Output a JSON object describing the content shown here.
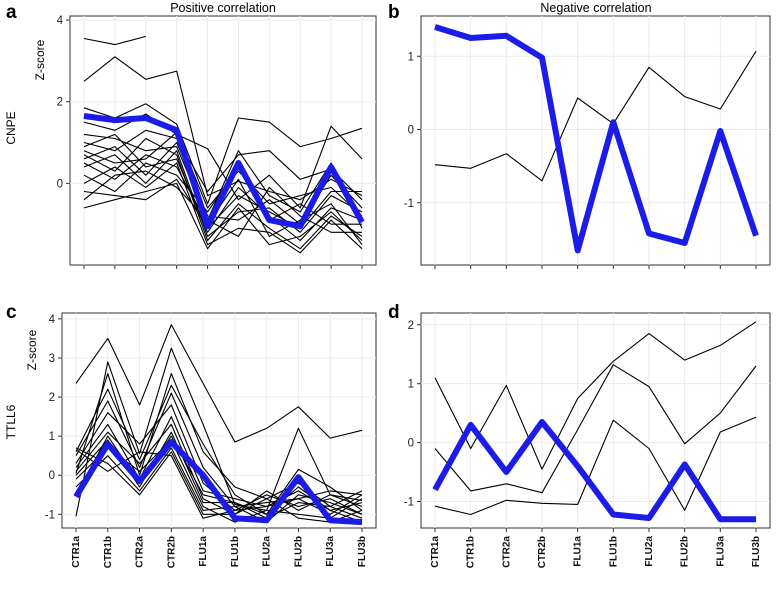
{
  "figure": {
    "colors": {
      "background": "#ffffff",
      "grid": "#ebebeb",
      "frame": "#333333",
      "gene_line": "#000000",
      "highlight": "#1c1ce8"
    },
    "categories": [
      "CTR1a",
      "CTR1b",
      "CTR2a",
      "CTR2b",
      "FLU1a",
      "FLU1b",
      "FLU2a",
      "FLU2b",
      "FLU3a",
      "FLU3b"
    ]
  },
  "chart_data": [
    {
      "type": "line",
      "panel_label": "a",
      "title": "Positive correlation",
      "ylabel": "Z-score",
      "gene_label": "CNPE",
      "xlabel": "",
      "categories": [
        "CTR1a",
        "CTR1b",
        "CTR2a",
        "CTR2b",
        "FLU1a",
        "FLU1b",
        "FLU2a",
        "FLU2b",
        "FLU3a",
        "FLU3b"
      ],
      "ylim": [
        -2.0,
        4.1
      ],
      "yticks": [
        0,
        2,
        4
      ],
      "grid": true,
      "show_x_tick_labels": false,
      "highlight": {
        "name": "CNPE",
        "color": "#1c1ce8",
        "values": [
          1.65,
          1.55,
          1.6,
          1.3,
          -1.05,
          0.5,
          -0.9,
          -1.05,
          0.4,
          -0.95
        ]
      },
      "series": [
        {
          "name": "g1",
          "values": [
            3.55,
            3.4,
            3.6,
            null,
            null,
            null,
            null,
            null,
            null,
            null
          ]
        },
        {
          "name": "g2",
          "values": [
            2.5,
            3.1,
            2.55,
            2.75,
            -0.3,
            0.05,
            -0.2,
            -0.4,
            0.1,
            -0.3
          ]
        },
        {
          "name": "g3",
          "values": [
            1.85,
            1.6,
            1.95,
            1.45,
            -0.5,
            1.6,
            1.5,
            0.9,
            1.1,
            1.35
          ]
        },
        {
          "name": "g4",
          "values": [
            1.5,
            1.3,
            1.7,
            1.2,
            0.85,
            -0.4,
            0.2,
            -0.6,
            1.4,
            0.6
          ]
        },
        {
          "name": "g5",
          "values": [
            1.2,
            1.1,
            0.8,
            0.9,
            -0.9,
            0.8,
            -0.3,
            -0.7,
            0.5,
            -1.1
          ]
        },
        {
          "name": "g6",
          "values": [
            1.0,
            0.8,
            1.3,
            1.1,
            -0.2,
            0.7,
            0.8,
            0.1,
            0.35,
            -0.4
          ]
        },
        {
          "name": "g7",
          "values": [
            0.9,
            1.2,
            0.4,
            0.6,
            -1.2,
            -0.1,
            -0.8,
            -1.4,
            -0.6,
            -0.9
          ]
        },
        {
          "name": "g8",
          "values": [
            0.8,
            0.5,
            0.6,
            1.25,
            -0.6,
            0.3,
            -0.5,
            -0.3,
            -0.1,
            -0.8
          ]
        },
        {
          "name": "g9",
          "values": [
            0.7,
            0.3,
            1.1,
            0.7,
            -1.4,
            -0.5,
            -1.1,
            -1.6,
            -0.8,
            -1.3
          ]
        },
        {
          "name": "g10",
          "values": [
            0.6,
            0.9,
            0.2,
            1.0,
            -0.8,
            -0.9,
            -0.4,
            -1.0,
            0.2,
            -0.6
          ]
        },
        {
          "name": "g11",
          "values": [
            0.5,
            0.1,
            0.7,
            0.4,
            -1.0,
            0.1,
            -1.3,
            -0.9,
            -0.5,
            -1.5
          ]
        },
        {
          "name": "g12",
          "values": [
            0.4,
            0.7,
            0.0,
            0.8,
            -1.3,
            -0.7,
            -0.6,
            -1.2,
            -0.3,
            -0.7
          ]
        },
        {
          "name": "g13",
          "values": [
            0.2,
            -0.2,
            0.5,
            0.2,
            -0.7,
            0.4,
            -0.9,
            -0.5,
            -1.0,
            -1.0
          ]
        },
        {
          "name": "g14",
          "values": [
            0.0,
            0.4,
            -0.1,
            0.5,
            -1.5,
            -1.1,
            -1.2,
            -1.7,
            -0.9,
            -1.6
          ]
        },
        {
          "name": "g15",
          "values": [
            -0.2,
            -0.3,
            -0.4,
            0.1,
            -1.1,
            -0.3,
            -0.7,
            -1.1,
            -0.2,
            -0.2
          ]
        },
        {
          "name": "g16",
          "values": [
            -0.4,
            0.2,
            0.3,
            -0.1,
            -0.9,
            -1.3,
            -0.1,
            -0.8,
            -1.2,
            -1.2
          ]
        },
        {
          "name": "g17",
          "values": [
            -0.6,
            -0.4,
            -0.2,
            0.0,
            -1.6,
            -0.6,
            -1.5,
            -1.3,
            -0.7,
            -1.4
          ]
        }
      ]
    },
    {
      "type": "line",
      "panel_label": "b",
      "title": "Negative correlation",
      "ylabel": "",
      "gene_label": "",
      "xlabel": "",
      "categories": [
        "CTR1a",
        "CTR1b",
        "CTR2a",
        "CTR2b",
        "FLU1a",
        "FLU1b",
        "FLU2a",
        "FLU2b",
        "FLU3a",
        "FLU3b"
      ],
      "ylim": [
        -1.85,
        1.55
      ],
      "yticks": [
        -1,
        0,
        1
      ],
      "grid": true,
      "show_x_tick_labels": false,
      "highlight": {
        "name": "CNPE",
        "color": "#1c1ce8",
        "values": [
          1.4,
          1.25,
          1.28,
          0.98,
          -1.65,
          0.1,
          -1.42,
          -1.55,
          -0.02,
          -1.45
        ]
      },
      "series": [
        {
          "name": "h1",
          "values": [
            -0.48,
            -0.53,
            -0.33,
            -0.7,
            0.43,
            0.08,
            0.85,
            0.45,
            0.28,
            1.07
          ]
        }
      ]
    },
    {
      "type": "line",
      "panel_label": "c",
      "title": "",
      "ylabel": "Z-score",
      "gene_label": "TTLL6",
      "xlabel": "",
      "categories": [
        "CTR1a",
        "CTR1b",
        "CTR2a",
        "CTR2b",
        "FLU1a",
        "FLU1b",
        "FLU2a",
        "FLU2b",
        "FLU3a",
        "FLU3b"
      ],
      "ylim": [
        -1.35,
        4.15
      ],
      "yticks": [
        -1,
        0,
        1,
        2,
        3,
        4
      ],
      "grid": true,
      "show_x_tick_labels": true,
      "highlight": {
        "name": "TTLL6",
        "color": "#1c1ce8",
        "values": [
          -0.55,
          0.8,
          -0.15,
          0.85,
          0.0,
          -1.1,
          -1.15,
          -0.05,
          -1.15,
          -1.2
        ]
      },
      "series": [
        {
          "name": "t1",
          "values": [
            2.35,
            3.5,
            1.8,
            3.85,
            2.35,
            0.85,
            1.2,
            1.75,
            0.95,
            1.15
          ]
        },
        {
          "name": "t2",
          "values": [
            -1.05,
            2.9,
            0.55,
            3.25,
            1.3,
            -0.75,
            -0.9,
            1.2,
            -0.5,
            -0.65
          ]
        },
        {
          "name": "t3",
          "values": [
            0.05,
            2.6,
            0.0,
            2.6,
            0.6,
            -0.3,
            -0.6,
            -0.2,
            -0.8,
            -0.4
          ]
        },
        {
          "name": "t4",
          "values": [
            0.6,
            2.2,
            0.4,
            2.3,
            0.8,
            -0.5,
            -1.0,
            0.15,
            -0.3,
            -0.9
          ]
        },
        {
          "name": "t5",
          "values": [
            0.5,
            1.9,
            0.2,
            2.1,
            0.2,
            -0.8,
            -0.7,
            -0.6,
            -1.0,
            -0.5
          ]
        },
        {
          "name": "t6",
          "values": [
            0.3,
            1.6,
            0.8,
            1.8,
            -0.2,
            -0.9,
            -0.5,
            -0.8,
            -0.6,
            -1.0
          ]
        },
        {
          "name": "t7",
          "values": [
            0.2,
            1.3,
            -0.1,
            1.5,
            -0.4,
            -0.6,
            -0.8,
            -0.4,
            -0.9,
            -0.7
          ]
        },
        {
          "name": "t8",
          "values": [
            0.1,
            1.1,
            0.3,
            1.3,
            -0.6,
            -1.0,
            -0.4,
            -0.9,
            -0.5,
            -0.8
          ]
        },
        {
          "name": "t9",
          "values": [
            0.0,
            0.9,
            -0.3,
            1.1,
            -0.7,
            -0.7,
            -1.1,
            -0.7,
            -0.8,
            -1.1
          ]
        },
        {
          "name": "t10",
          "values": [
            -0.1,
            0.7,
            0.1,
            0.9,
            -0.8,
            -1.2,
            -0.9,
            -1.0,
            -1.1,
            -0.6
          ]
        },
        {
          "name": "t11",
          "values": [
            -0.3,
            0.5,
            -0.4,
            0.7,
            -0.9,
            -0.8,
            -1.2,
            -0.5,
            -0.7,
            -1.0
          ]
        },
        {
          "name": "t12",
          "values": [
            0.7,
            0.3,
            -0.5,
            0.6,
            -1.0,
            -1.0,
            -0.6,
            -1.1,
            -1.2,
            -0.9
          ]
        },
        {
          "name": "t13",
          "values": [
            -0.5,
            1.0,
            -0.2,
            1.0,
            -0.5,
            -0.7,
            -1.0,
            -0.3,
            -0.9,
            -1.2
          ]
        },
        {
          "name": "t14",
          "values": [
            0.65,
            0.1,
            0.6,
            0.5,
            -1.1,
            -0.9,
            -0.8,
            -0.6,
            -0.4,
            -0.5
          ]
        }
      ]
    },
    {
      "type": "line",
      "panel_label": "d",
      "title": "",
      "ylabel": "",
      "gene_label": "",
      "xlabel": "",
      "categories": [
        "CTR1a",
        "CTR1b",
        "CTR2a",
        "CTR2b",
        "FLU1a",
        "FLU1b",
        "FLU2a",
        "FLU2b",
        "FLU3a",
        "FLU3b"
      ],
      "ylim": [
        -1.45,
        2.2
      ],
      "yticks": [
        -1,
        0,
        1,
        2
      ],
      "grid": true,
      "show_x_tick_labels": true,
      "highlight": {
        "name": "TTLL6",
        "color": "#1c1ce8",
        "values": [
          -0.8,
          0.3,
          -0.5,
          0.35,
          -0.4,
          -1.22,
          -1.28,
          -0.37,
          -1.3,
          -1.3
        ]
      },
      "series": [
        {
          "name": "u1",
          "values": [
            1.1,
            -0.1,
            0.97,
            -0.45,
            0.75,
            1.38,
            1.85,
            1.4,
            1.65,
            2.05
          ]
        },
        {
          "name": "u2",
          "values": [
            -0.1,
            -0.82,
            -0.7,
            -0.85,
            0.22,
            1.32,
            0.95,
            -0.02,
            0.5,
            1.3
          ]
        },
        {
          "name": "u3",
          "values": [
            -1.08,
            -1.22,
            -0.98,
            -1.03,
            -1.05,
            0.38,
            -0.1,
            -1.15,
            0.18,
            0.43
          ]
        }
      ]
    }
  ]
}
